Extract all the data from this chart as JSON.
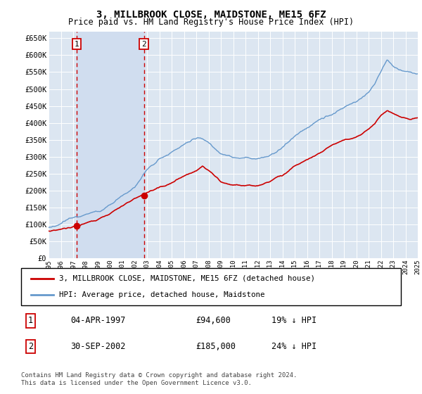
{
  "title": "3, MILLBROOK CLOSE, MAIDSTONE, ME15 6FZ",
  "subtitle": "Price paid vs. HM Land Registry's House Price Index (HPI)",
  "ylim": [
    0,
    670000
  ],
  "yticks": [
    0,
    50000,
    100000,
    150000,
    200000,
    250000,
    300000,
    350000,
    400000,
    450000,
    500000,
    550000,
    600000,
    650000
  ],
  "background_color": "#dce6f1",
  "sale1_x": 1997.27,
  "sale1_price": 94600,
  "sale2_x": 2002.75,
  "sale2_price": 185000,
  "legend_label_red": "3, MILLBROOK CLOSE, MAIDSTONE, ME15 6FZ (detached house)",
  "legend_label_blue": "HPI: Average price, detached house, Maidstone",
  "table_entries": [
    {
      "num": "1",
      "date": "04-APR-1997",
      "price": "£94,600",
      "hpi": "19% ↓ HPI"
    },
    {
      "num": "2",
      "date": "30-SEP-2002",
      "price": "£185,000",
      "hpi": "24% ↓ HPI"
    }
  ],
  "footer": "Contains HM Land Registry data © Crown copyright and database right 2024.\nThis data is licensed under the Open Government Licence v3.0.",
  "red_color": "#cc0000",
  "blue_color": "#6699cc",
  "shade_color": "#d0ddef",
  "xmin": 1995,
  "xmax": 2025
}
